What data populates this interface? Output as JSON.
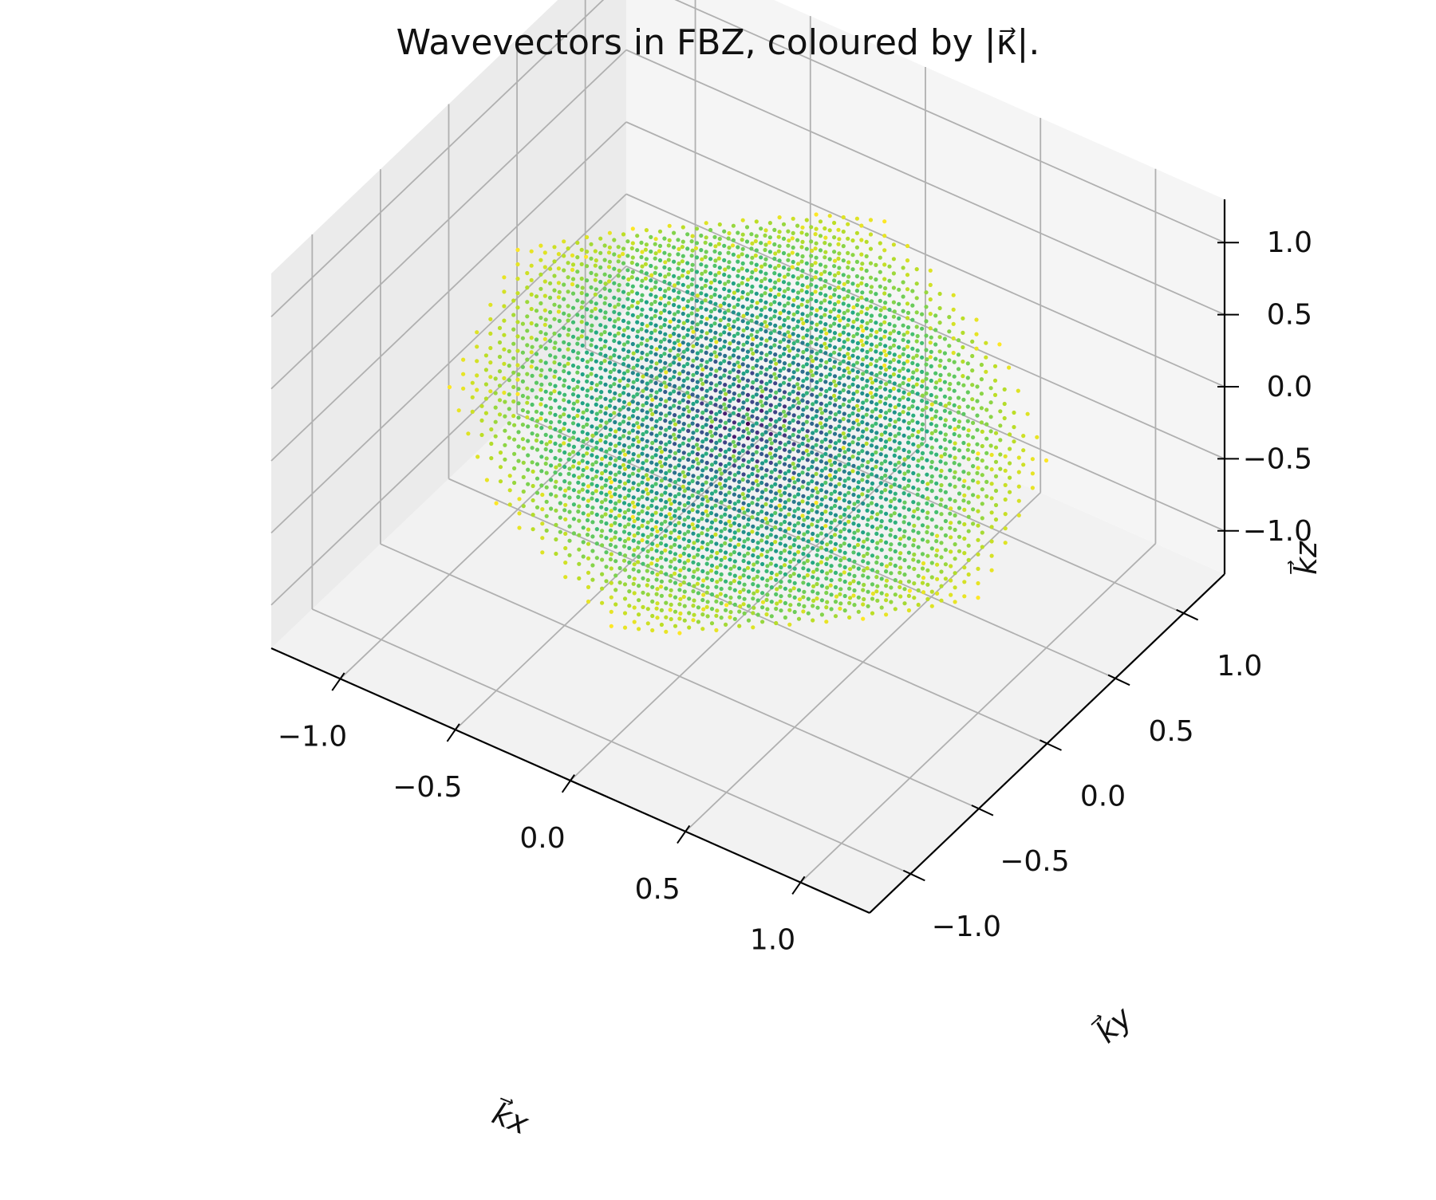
{
  "chart_data": {
    "type": "scatter",
    "projection": "3d",
    "title": "Wavevectors in FBZ, coloured by |κ⃗|.",
    "xlabel": "k⃗x",
    "ylabel": "k⃗y",
    "zlabel": "k⃗z",
    "xlim": [
      -1.3,
      1.3
    ],
    "ylim": [
      -1.3,
      1.3
    ],
    "zlim": [
      -1.3,
      1.3
    ],
    "xticks": [
      -1.0,
      -0.5,
      0.0,
      0.5,
      1.0
    ],
    "yticks": [
      -1.0,
      -0.5,
      0.0,
      0.5,
      1.0
    ],
    "zticks": [
      -1.0,
      -0.5,
      0.0,
      0.5,
      1.0
    ],
    "xtick_labels": [
      "−1.0",
      "−0.5",
      "0.0",
      "0.5",
      "1.0"
    ],
    "ytick_labels": [
      "−1.0",
      "−0.5",
      "0.0",
      "0.5",
      "1.0"
    ],
    "ztick_labels": [
      "−1.0",
      "−0.5",
      "0.0",
      "0.5",
      "1.0"
    ],
    "grid": true,
    "colormap": "viridis",
    "color_by": "|k|",
    "region": "first Brillouin zone (truncated octahedron)",
    "region_bounds": {
      "max_abs_component": 1.0,
      "max_abs_sum": 1.5
    },
    "grid_step": 0.1
  }
}
